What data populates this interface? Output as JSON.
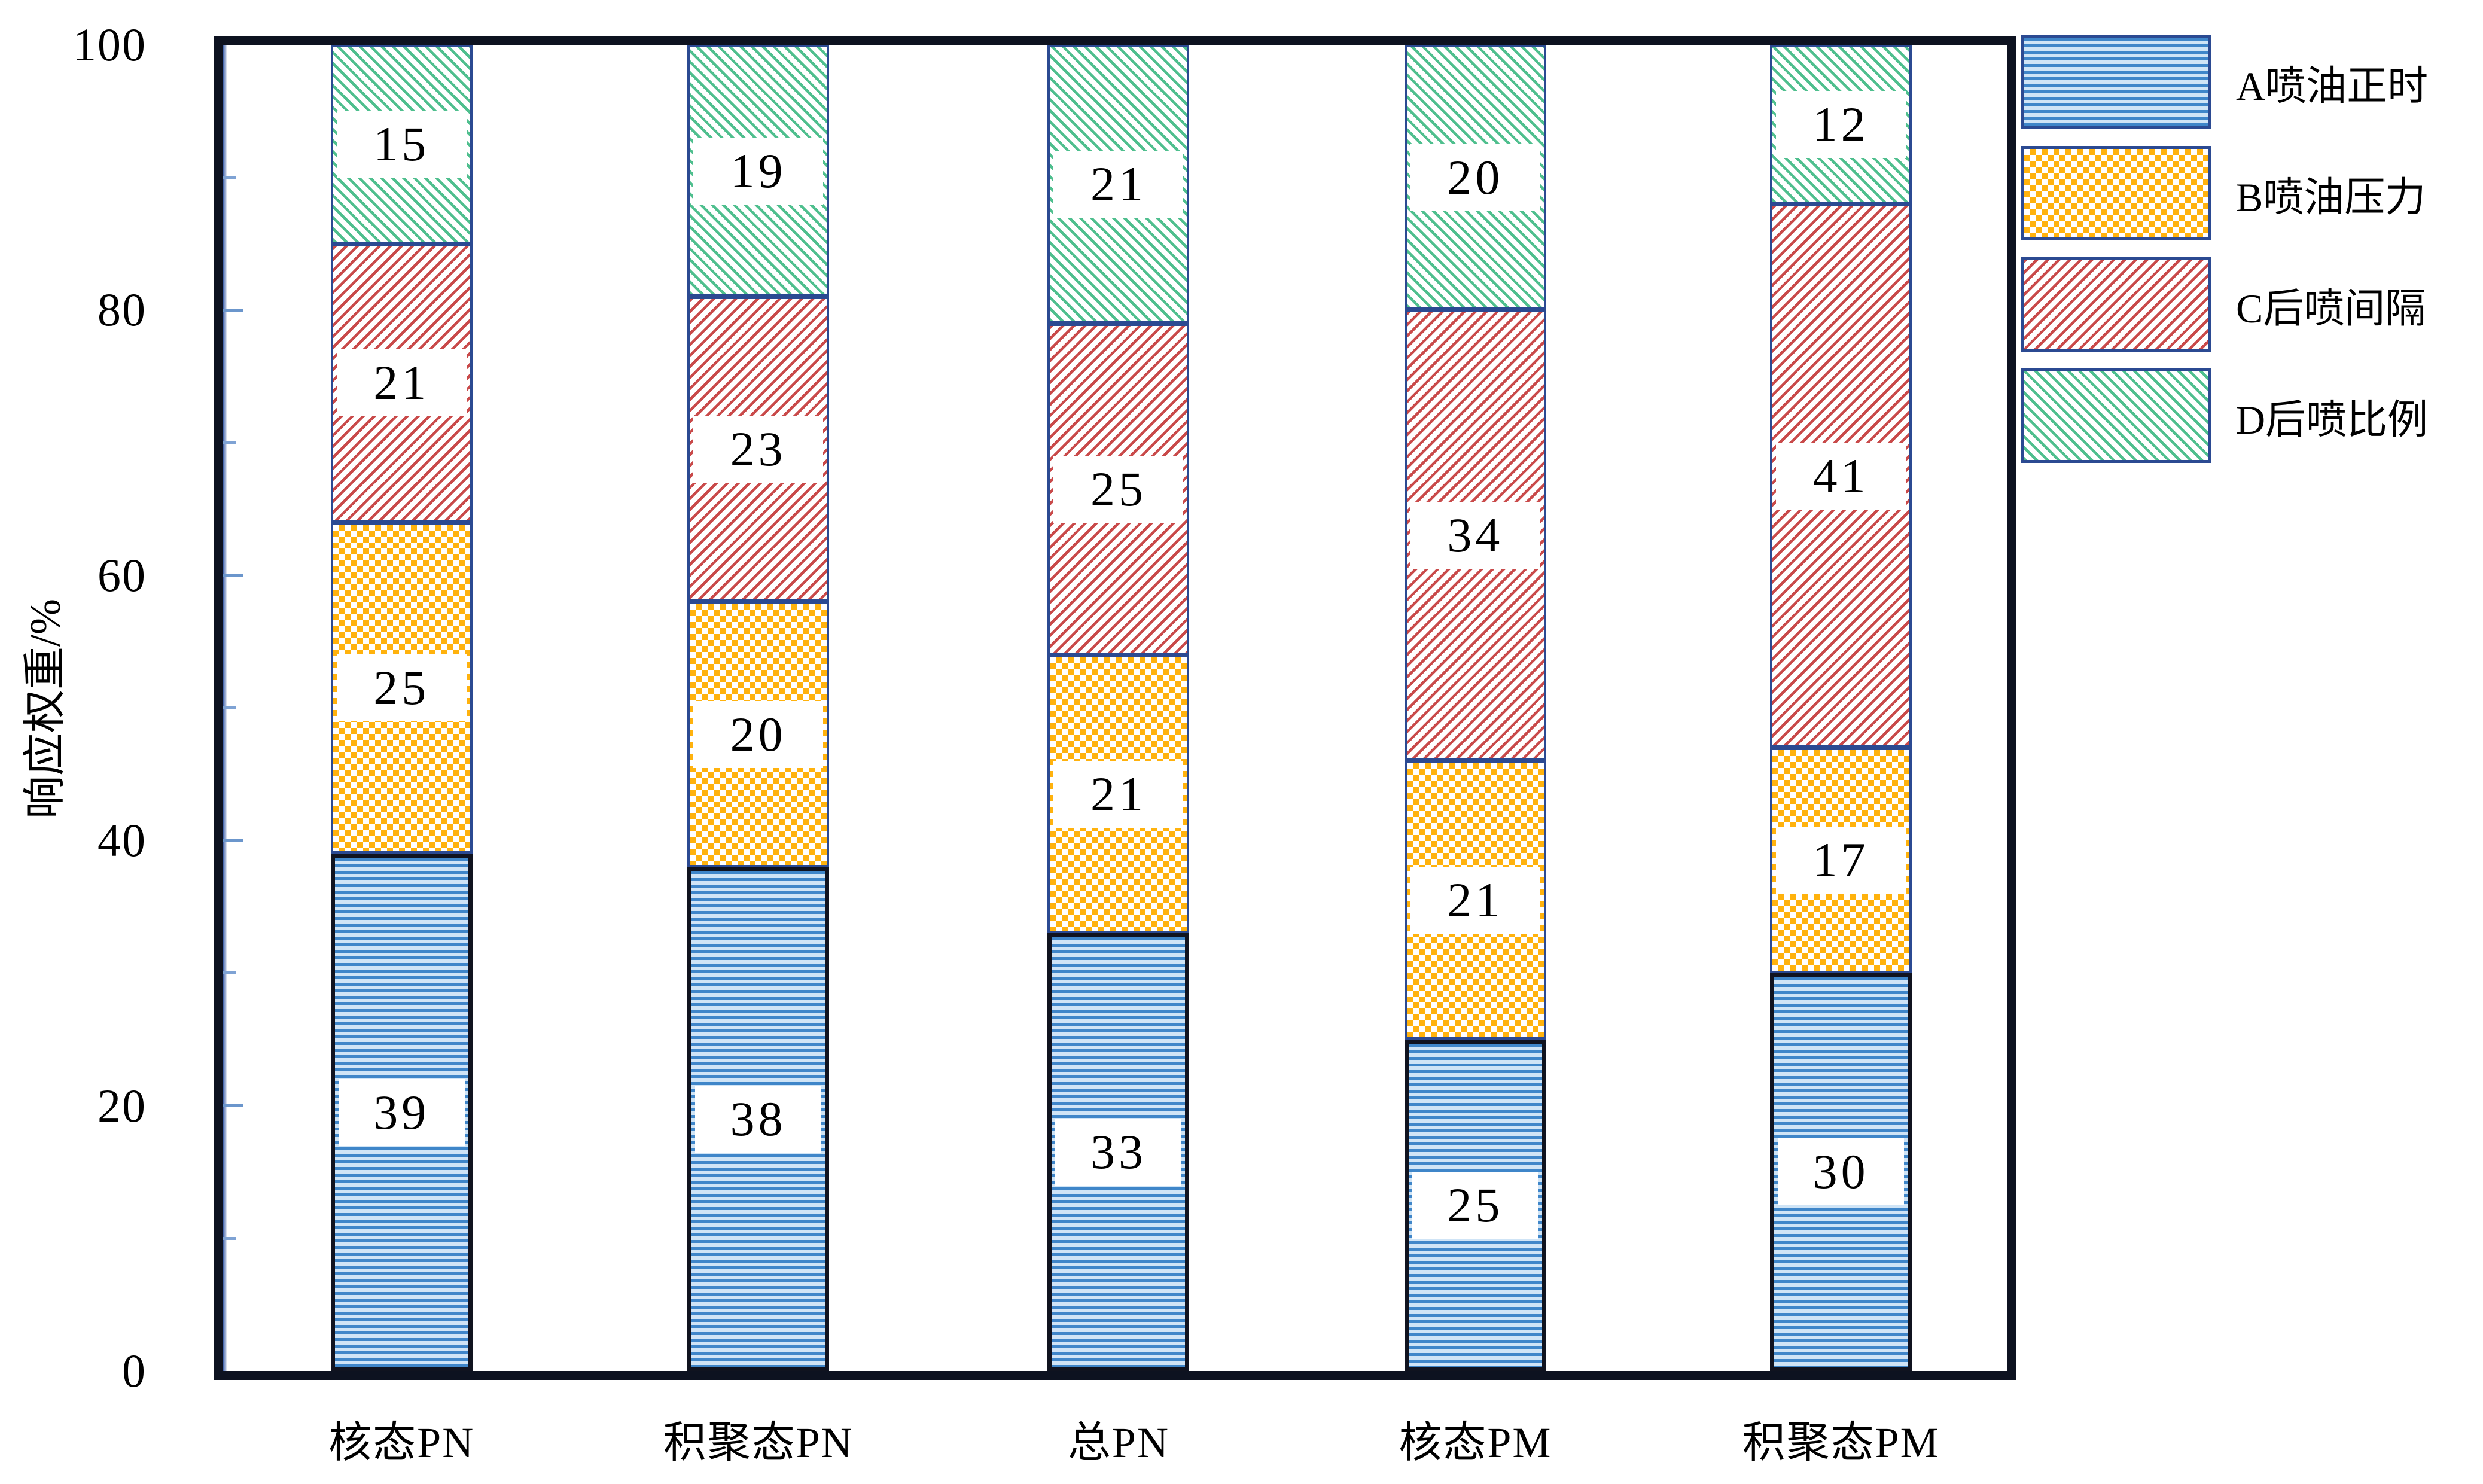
{
  "chart_data": {
    "type": "bar",
    "stacked": true,
    "orientation": "vertical",
    "ylabel": "响应权重/%",
    "ylim": [
      0,
      100
    ],
    "yticks": [
      0,
      20,
      40,
      60,
      80,
      100
    ],
    "minor_yticks": [
      10,
      30,
      50,
      70,
      90
    ],
    "grid": false,
    "legend_position": "right-top",
    "categories": [
      "核态PN",
      "积聚态PN",
      "总PN",
      "核态PM",
      "积聚态PM"
    ],
    "series": [
      {
        "name": "A喷油正时",
        "pattern": "horizontal-stripes",
        "color": "#3F86C9",
        "values": [
          39,
          38,
          33,
          25,
          30
        ]
      },
      {
        "name": "B喷油压力",
        "pattern": "checkerboard",
        "color": "#FFB20D",
        "values": [
          25,
          20,
          21,
          21,
          17
        ]
      },
      {
        "name": "C后喷间隔",
        "pattern": "diagonal-forward",
        "color": "#C94A4A",
        "values": [
          21,
          23,
          25,
          34,
          41
        ]
      },
      {
        "name": "D后喷比例",
        "pattern": "diagonal-back",
        "color": "#4FBF8E",
        "values": [
          15,
          19,
          21,
          20,
          12
        ]
      }
    ],
    "colors": {
      "axis": "#0D1220",
      "tick": "#6B96CC",
      "segment_border": "#2B4A92",
      "label_text": "#000000",
      "label_background": "#FFFFFF"
    }
  }
}
